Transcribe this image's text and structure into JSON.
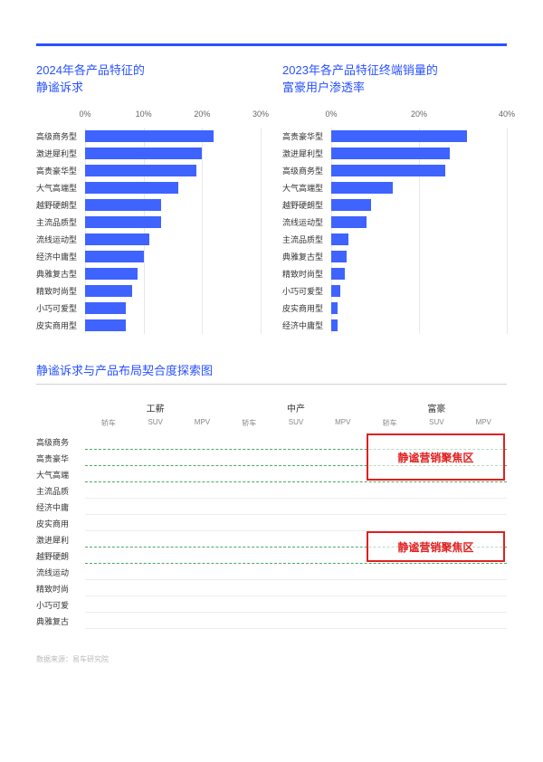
{
  "colors": {
    "accent": "#2952ff",
    "bar_fill": "#3e63ff",
    "grid": "#e8e8e8",
    "text": "#333333",
    "text_muted": "#888888",
    "dashed_line": "#4aa868",
    "focus_red": "#e02020",
    "background": "#ffffff"
  },
  "chart_left": {
    "title_line1": "2024年各产品特征的",
    "title_line2": "静谧诉求",
    "type": "horizontal_bar",
    "xlim": [
      0,
      30
    ],
    "ticks": [
      0,
      10,
      20,
      30
    ],
    "tick_labels": [
      "0%",
      "10%",
      "20%",
      "30%"
    ],
    "bar_color": "#3e63ff",
    "label_fontsize": 9,
    "bars": [
      {
        "label": "高级商务型",
        "value": 22
      },
      {
        "label": "激进犀利型",
        "value": 20
      },
      {
        "label": "高贵豪华型",
        "value": 19
      },
      {
        "label": "大气高端型",
        "value": 16
      },
      {
        "label": "越野硬朗型",
        "value": 13
      },
      {
        "label": "主流品质型",
        "value": 13
      },
      {
        "label": "流线运动型",
        "value": 11
      },
      {
        "label": "经济中庸型",
        "value": 10
      },
      {
        "label": "典雅复古型",
        "value": 9
      },
      {
        "label": "精致时尚型",
        "value": 8
      },
      {
        "label": "小巧可爱型",
        "value": 7
      },
      {
        "label": "皮实商用型",
        "value": 7
      }
    ]
  },
  "chart_right": {
    "title_line1": "2023年各产品特征终端销量的",
    "title_line2": "富豪用户渗透率",
    "type": "horizontal_bar",
    "xlim": [
      0,
      40
    ],
    "ticks": [
      0,
      20,
      40
    ],
    "tick_labels": [
      "0%",
      "20%",
      "40%"
    ],
    "bar_color": "#3e63ff",
    "label_fontsize": 9,
    "bars": [
      {
        "label": "高贵豪华型",
        "value": 31
      },
      {
        "label": "激进犀利型",
        "value": 27
      },
      {
        "label": "高级商务型",
        "value": 26
      },
      {
        "label": "大气高端型",
        "value": 14
      },
      {
        "label": "越野硬朗型",
        "value": 9
      },
      {
        "label": "流线运动型",
        "value": 8
      },
      {
        "label": "主流品质型",
        "value": 4
      },
      {
        "label": "典雅复古型",
        "value": 3.5
      },
      {
        "label": "精致时尚型",
        "value": 3
      },
      {
        "label": "小巧可爱型",
        "value": 2
      },
      {
        "label": "皮实商用型",
        "value": 1.5
      },
      {
        "label": "经济中庸型",
        "value": 1.5
      }
    ]
  },
  "matrix": {
    "title": "静谧诉求与产品布局契合度探索图",
    "groups": [
      "工薪",
      "中产",
      "富豪"
    ],
    "subcols": [
      "轿车",
      "SUV",
      "MPV"
    ],
    "rows": [
      {
        "label": "高级商务",
        "dashed": true
      },
      {
        "label": "高贵豪华",
        "dashed": true
      },
      {
        "label": "大气高端",
        "dashed": true
      },
      {
        "label": "主流品质",
        "dashed": false
      },
      {
        "label": "经济中庸",
        "dashed": false
      },
      {
        "label": "皮实商用",
        "dashed": false
      },
      {
        "label": "激进犀利",
        "dashed": true
      },
      {
        "label": "越野硬朗",
        "dashed": true
      },
      {
        "label": "流线运动",
        "dashed": false
      },
      {
        "label": "精致时尚",
        "dashed": false
      },
      {
        "label": "小巧可爱",
        "dashed": false
      },
      {
        "label": "典雅复古",
        "dashed": false
      }
    ],
    "focus_label": "静谧营销聚焦区",
    "focus_boxes": [
      {
        "row_start": 0,
        "row_end": 2,
        "col_group": 2
      },
      {
        "row_start": 6,
        "row_end": 7,
        "col_group": 2
      }
    ]
  },
  "source": "数据来源：易车研究院"
}
